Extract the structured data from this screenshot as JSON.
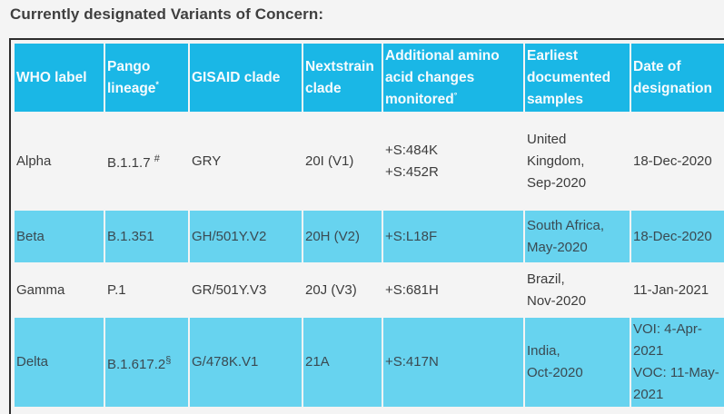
{
  "heading": "Currently designated Variants of Concern:",
  "columns": [
    {
      "label": "WHO label",
      "sup": ""
    },
    {
      "label": "Pango lineage",
      "sup": "*"
    },
    {
      "label": "GISAID clade",
      "sup": ""
    },
    {
      "label": "Nextstrain clade",
      "sup": ""
    },
    {
      "label": "Additional amino acid changes monitored",
      "sup": "°"
    },
    {
      "label": "Earliest documented samples",
      "sup": ""
    },
    {
      "label": "Date of designation",
      "sup": ""
    }
  ],
  "rows": [
    {
      "who_label": "Alpha",
      "pango": "B.1.1.7",
      "pango_sup": "#",
      "gisaid": "GRY",
      "nextstrain": "20I (V1)",
      "changes": [
        "+S:484K",
        "+S:452R"
      ],
      "samples": [
        "United",
        "Kingdom,",
        "Sep-2020"
      ],
      "designation": [
        "18-Dec-2020"
      ]
    },
    {
      "who_label": "Beta",
      "pango": "B.1.351",
      "pango_sup": "",
      "gisaid": "GH/501Y.V2",
      "nextstrain": "20H (V2)",
      "changes": [
        "+S:L18F"
      ],
      "samples": [
        "South Africa,",
        "May-2020"
      ],
      "designation": [
        "18-Dec-2020"
      ]
    },
    {
      "who_label": "Gamma",
      "pango": "P.1",
      "pango_sup": "",
      "gisaid": "GR/501Y.V3",
      "nextstrain": "20J (V3)",
      "changes": [
        "+S:681H"
      ],
      "samples": [
        "Brazil,",
        "Nov-2020"
      ],
      "designation": [
        "11-Jan-2021"
      ]
    },
    {
      "who_label": "Delta",
      "pango": "B.1.617.2",
      "pango_sup": "§",
      "gisaid": "G/478K.V1",
      "nextstrain": "21A",
      "changes": [
        "+S:417N"
      ],
      "samples": [
        "India,",
        "Oct-2020"
      ],
      "designation": [
        "VOI: 4-Apr-",
        "2021",
        "VOC: 11-May-",
        "2021"
      ]
    }
  ]
}
